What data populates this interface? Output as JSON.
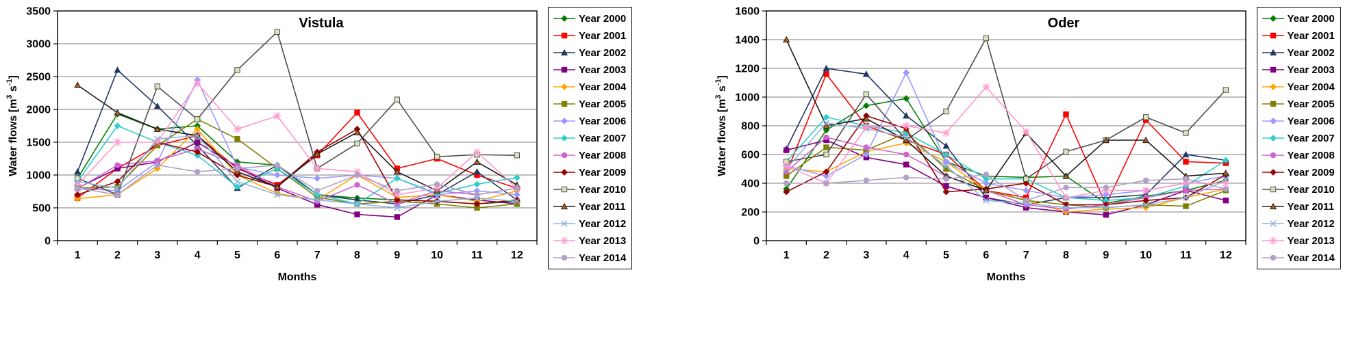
{
  "figure": {
    "background": "#ffffff",
    "grid_color": "#7f7f7f",
    "axis_color": "#000000"
  },
  "chart_data": [
    {
      "type": "line",
      "title": "Vistula",
      "title_pos": 0.55,
      "xlabel": "Months",
      "ylabel": "Water flows [m3 s-1]",
      "ylabel_parts": {
        "base1": "Water flows [m",
        "sup1": "3",
        "base2": " s",
        "sup2": "-1",
        "base3": "]"
      },
      "categories": [
        "1",
        "2",
        "3",
        "4",
        "5",
        "6",
        "7",
        "8",
        "9",
        "10",
        "11",
        "12"
      ],
      "ylim": [
        0,
        3500
      ],
      "ytick_interval": 500,
      "grid": true,
      "legend_position": "right",
      "series": [
        {
          "name": "Year 2000",
          "color": "#008000",
          "marker": "diamond",
          "values": [
            950,
            1930,
            1700,
            1750,
            1200,
            1150,
            700,
            650,
            620,
            600,
            560,
            600
          ]
        },
        {
          "name": "Year 2001",
          "color": "#ff0000",
          "marker": "square",
          "values": [
            650,
            1100,
            1450,
            1600,
            1100,
            850,
            1300,
            1950,
            1100,
            1250,
            1000,
            800
          ]
        },
        {
          "name": "Year 2002",
          "color": "#203864",
          "marker": "triangle",
          "values": [
            1050,
            2600,
            2050,
            1450,
            800,
            1150,
            700,
            620,
            560,
            700,
            1050,
            620
          ]
        },
        {
          "name": "Year 2003",
          "color": "#800080",
          "marker": "square",
          "values": [
            800,
            1100,
            1200,
            1500,
            1120,
            800,
            550,
            400,
            360,
            700,
            620,
            560
          ]
        },
        {
          "name": "Year 2004",
          "color": "#ffa500",
          "marker": "diamond",
          "values": [
            640,
            700,
            1100,
            1700,
            1000,
            720,
            620,
            1000,
            660,
            700,
            600,
            760
          ]
        },
        {
          "name": "Year 2005",
          "color": "#808000",
          "marker": "square",
          "values": [
            800,
            820,
            1450,
            1850,
            1550,
            1100,
            660,
            560,
            600,
            560,
            500,
            560
          ]
        },
        {
          "name": "Year 2006",
          "color": "#9999ff",
          "marker": "diamond",
          "values": [
            800,
            760,
            1200,
            2450,
            1120,
            1000,
            950,
            1000,
            950,
            700,
            760,
            700
          ]
        },
        {
          "name": "Year 2007",
          "color": "#33cccc",
          "marker": "diamond",
          "values": [
            900,
            1750,
            1500,
            1300,
            820,
            1100,
            700,
            560,
            950,
            720,
            860,
            960
          ]
        },
        {
          "name": "Year 2008",
          "color": "#cc66cc",
          "marker": "circle",
          "values": [
            790,
            1150,
            1220,
            1400,
            1150,
            820,
            600,
            850,
            560,
            760,
            700,
            800
          ]
        },
        {
          "name": "Year 2009",
          "color": "#990000",
          "marker": "diamond",
          "values": [
            700,
            900,
            1500,
            1350,
            1000,
            820,
            1350,
            1700,
            620,
            600,
            560,
            620
          ]
        },
        {
          "name": "Year 2010",
          "color": "#d8e4bc",
          "line_color": "#4d4d4d",
          "marker": "square",
          "marker_fill": "#d8e4bc",
          "marker_stroke": "#4d4d4d",
          "values": [
            950,
            700,
            2350,
            1850,
            2600,
            3180,
            1100,
            1480,
            2150,
            1280,
            1310,
            1300
          ]
        },
        {
          "name": "Year 2011",
          "color": "#b45f1d",
          "line_color": "#1a1a1a",
          "marker": "triangle",
          "marker_fill": "#b45f1d",
          "marker_stroke": "#1a1a1a",
          "values": [
            2370,
            1950,
            1700,
            1600,
            1050,
            820,
            1320,
            1650,
            1050,
            760,
            1200,
            850
          ]
        },
        {
          "name": "Year 2012",
          "color": "#8db4e2",
          "marker": "x",
          "values": [
            900,
            800,
            1550,
            1600,
            900,
            700,
            620,
            560,
            500,
            600,
            650,
            600
          ]
        },
        {
          "name": "Year 2013",
          "color": "#ff99cc",
          "marker": "star",
          "values": [
            850,
            1500,
            1500,
            2400,
            1700,
            1900,
            1100,
            1050,
            700,
            800,
            1350,
            800
          ]
        },
        {
          "name": "Year 2014",
          "color": "#b1a0c7",
          "marker": "circle",
          "values": [
            800,
            700,
            1150,
            1050,
            1100,
            1150,
            760,
            1000,
            760,
            860,
            700,
            800
          ]
        }
      ]
    },
    {
      "type": "line",
      "title": "Oder",
      "title_pos": 0.62,
      "xlabel": "Months",
      "ylabel": "Water flows [m3 s-1]",
      "ylabel_parts": {
        "base1": "Water flows [m",
        "sup1": "3",
        "base2": " s",
        "sup2": "-1",
        "base3": "]"
      },
      "categories": [
        "1",
        "2",
        "3",
        "4",
        "5",
        "6",
        "7",
        "8",
        "9",
        "10",
        "11",
        "12"
      ],
      "ylim": [
        0,
        1600
      ],
      "ytick_interval": 200,
      "grid": true,
      "legend_position": "right",
      "series": [
        {
          "name": "Year 2000",
          "color": "#008000",
          "marker": "diamond",
          "values": [
            360,
            770,
            940,
            990,
            550,
            450,
            440,
            450,
            260,
            310,
            350,
            420
          ]
        },
        {
          "name": "Year 2001",
          "color": "#ff0000",
          "marker": "square",
          "values": [
            470,
            1160,
            800,
            700,
            600,
            350,
            300,
            880,
            250,
            840,
            550,
            540
          ]
        },
        {
          "name": "Year 2002",
          "color": "#203864",
          "marker": "triangle",
          "values": [
            640,
            1200,
            1160,
            870,
            660,
            300,
            250,
            300,
            300,
            320,
            600,
            560
          ]
        },
        {
          "name": "Year 2003",
          "color": "#800080",
          "marker": "square",
          "values": [
            630,
            700,
            580,
            530,
            380,
            300,
            230,
            200,
            180,
            250,
            350,
            280
          ]
        },
        {
          "name": "Year 2004",
          "color": "#ffa500",
          "marker": "diamond",
          "values": [
            500,
            480,
            620,
            680,
            550,
            350,
            280,
            200,
            220,
            230,
            300,
            360
          ]
        },
        {
          "name": "Year 2005",
          "color": "#808000",
          "marker": "square",
          "values": [
            450,
            650,
            630,
            750,
            500,
            350,
            280,
            250,
            230,
            250,
            240,
            350
          ]
        },
        {
          "name": "Year 2006",
          "color": "#9999ff",
          "marker": "diamond",
          "values": [
            520,
            450,
            600,
            1170,
            550,
            400,
            350,
            300,
            320,
            350,
            400,
            450
          ]
        },
        {
          "name": "Year 2007",
          "color": "#33cccc",
          "marker": "diamond",
          "values": [
            550,
            860,
            800,
            750,
            600,
            430,
            430,
            300,
            280,
            300,
            380,
            560
          ]
        },
        {
          "name": "Year 2008",
          "color": "#cc66cc",
          "marker": "circle",
          "values": [
            480,
            720,
            650,
            600,
            450,
            350,
            250,
            220,
            250,
            300,
            350,
            360
          ]
        },
        {
          "name": "Year 2009",
          "color": "#990000",
          "marker": "diamond",
          "values": [
            340,
            480,
            870,
            780,
            340,
            360,
            400,
            250,
            250,
            280,
            300,
            460
          ]
        },
        {
          "name": "Year 2010",
          "color": "#d8e4bc",
          "line_color": "#4d4d4d",
          "marker": "square",
          "marker_fill": "#d8e4bc",
          "marker_stroke": "#4d4d4d",
          "values": [
            550,
            600,
            1020,
            700,
            900,
            1410,
            430,
            620,
            700,
            860,
            750,
            1050
          ]
        },
        {
          "name": "Year 2011",
          "color": "#b45f1d",
          "line_color": "#1a1a1a",
          "marker": "triangle",
          "marker_fill": "#b45f1d",
          "marker_stroke": "#1a1a1a",
          "values": [
            1400,
            800,
            850,
            700,
            450,
            350,
            750,
            450,
            700,
            700,
            450,
            470
          ]
        },
        {
          "name": "Year 2012",
          "color": "#8db4e2",
          "marker": "x",
          "values": [
            500,
            820,
            780,
            720,
            520,
            280,
            260,
            230,
            230,
            250,
            300,
            420
          ]
        },
        {
          "name": "Year 2013",
          "color": "#ff99cc",
          "marker": "star",
          "values": [
            520,
            400,
            790,
            800,
            750,
            1070,
            760,
            300,
            350,
            350,
            400,
            400
          ]
        },
        {
          "name": "Year 2014",
          "color": "#b1a0c7",
          "marker": "circle",
          "values": [
            400,
            400,
            420,
            440,
            430,
            460,
            280,
            370,
            370,
            420,
            430,
            360
          ]
        }
      ]
    }
  ]
}
